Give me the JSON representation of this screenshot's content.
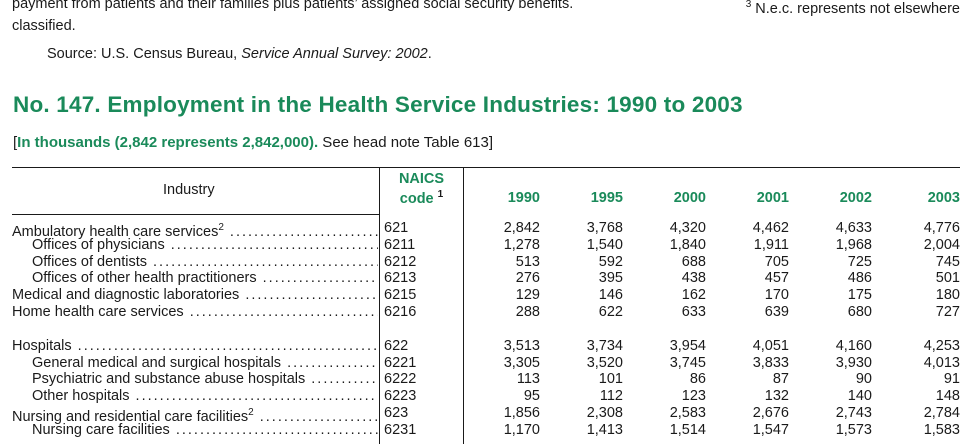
{
  "top_note": {
    "line1_left": "payment from patients and their families plus patients’ assigned social security benefits.",
    "line1_fn_mark": "3",
    "line1_right": "N.e.c. represents not elsewhere",
    "line2": "classified."
  },
  "source": {
    "prefix": "Source: U.S. Census Bureau,",
    "title": "Service Annual Survey: 2002",
    "suffix": "."
  },
  "table": {
    "title": "No. 147. Employment in the Health Service Industries: 1990 to 2003",
    "headnote_open": "[",
    "headnote_bold": "In thousands (2,842 represents 2,842,000).",
    "headnote_rest": " See head note Table 613]",
    "col_industry": "Industry",
    "col_naics_1": "NAICS",
    "col_naics_2": "code",
    "col_naics_fn": "1",
    "years": [
      "1990",
      "1995",
      "2000",
      "2001",
      "2002",
      "2003"
    ],
    "rows": [
      {
        "label": "Ambulatory health care services",
        "fn": "2",
        "code": "621",
        "values": [
          "2,842",
          "3,768",
          "4,320",
          "4,462",
          "4,633",
          "4,776"
        ]
      },
      {
        "label": "Offices of physicians",
        "fn": "",
        "code": "6211",
        "values": [
          "1,278",
          "1,540",
          "1,840",
          "1,911",
          "1,968",
          "2,004"
        ]
      },
      {
        "label": "Offices of dentists",
        "fn": "",
        "code": "6212",
        "values": [
          "513",
          "592",
          "688",
          "705",
          "725",
          "745"
        ]
      },
      {
        "label": "Offices of other health practitioners",
        "fn": "",
        "code": "6213",
        "values": [
          "276",
          "395",
          "438",
          "457",
          "486",
          "501"
        ]
      },
      {
        "label": "Medical and diagnostic laboratories",
        "fn": "",
        "code": "6215",
        "values": [
          "129",
          "146",
          "162",
          "170",
          "175",
          "180"
        ]
      },
      {
        "label": "Home health care services",
        "fn": "",
        "code": "6216",
        "values": [
          "288",
          "622",
          "633",
          "639",
          "680",
          "727"
        ]
      },
      {
        "label": "Hospitals",
        "fn": "",
        "code": "622",
        "values": [
          "3,513",
          "3,734",
          "3,954",
          "4,051",
          "4,160",
          "4,253"
        ]
      },
      {
        "label": "General medical and surgical hospitals",
        "fn": "",
        "code": "6221",
        "values": [
          "3,305",
          "3,520",
          "3,745",
          "3,833",
          "3,930",
          "4,013"
        ]
      },
      {
        "label": "Psychiatric and substance abuse hospitals",
        "fn": "",
        "code": "6222",
        "values": [
          "113",
          "101",
          "86",
          "87",
          "90",
          "91"
        ]
      },
      {
        "label": "Other hospitals",
        "fn": "",
        "code": "6223",
        "values": [
          "95",
          "112",
          "123",
          "132",
          "140",
          "148"
        ]
      },
      {
        "label": "Nursing and residential care facilities",
        "fn": "2",
        "code": "623",
        "values": [
          "1,856",
          "2,308",
          "2,583",
          "2,676",
          "2,743",
          "2,784"
        ]
      },
      {
        "label": "Nursing care facilities",
        "fn": "",
        "code": "6231",
        "values": [
          "1,170",
          "1,413",
          "1,514",
          "1,547",
          "1,573",
          "1,583"
        ]
      }
    ]
  },
  "colors": {
    "heading_green": "#1a8a5a",
    "text": "#1a1a1a"
  }
}
